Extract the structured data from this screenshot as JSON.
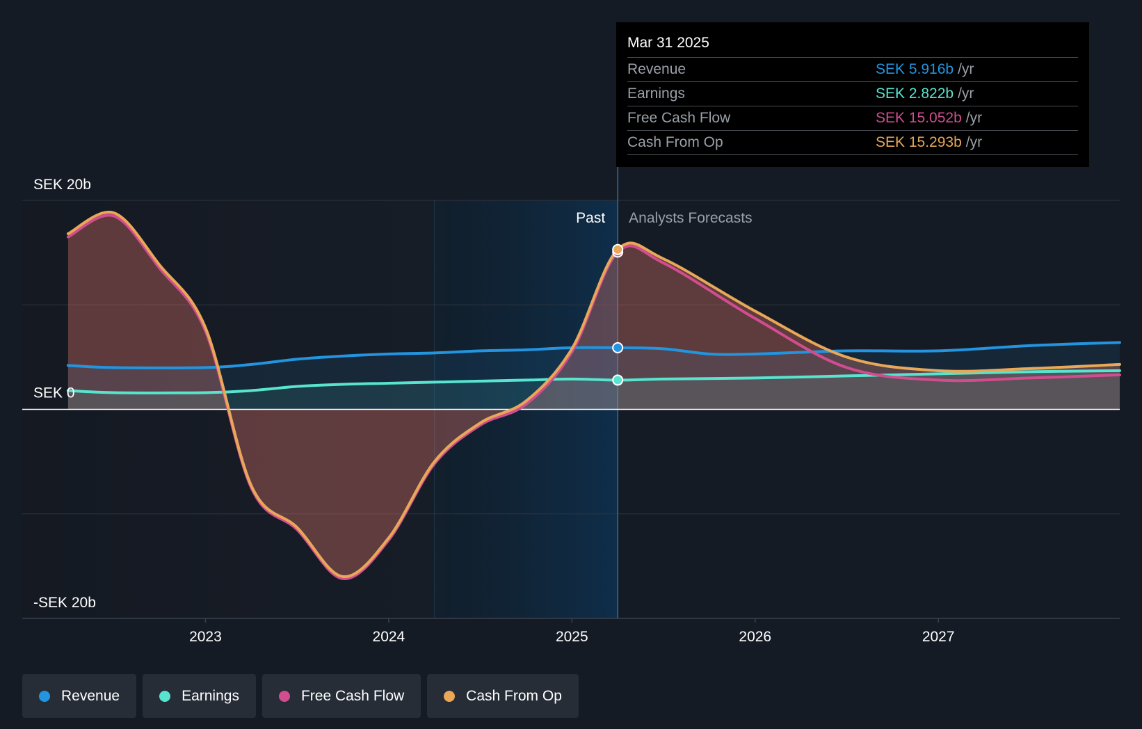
{
  "chart_data": {
    "type": "line",
    "currency": "SEK",
    "y_axis": {
      "labels": [
        "SEK 20b",
        "SEK 0",
        "-SEK 20b"
      ],
      "ticks": [
        20,
        0,
        -20
      ],
      "ylim": [
        -20,
        20
      ],
      "unit": "SEK billions"
    },
    "x_axis": {
      "tick_labels": [
        "2023",
        "2024",
        "2025",
        "2026",
        "2027"
      ],
      "ticks": [
        2023,
        2024,
        2025,
        2026,
        2027
      ],
      "xlim": [
        2022.0,
        2027.99
      ]
    },
    "past_label": "Past",
    "forecast_label": "Analysts Forecasts",
    "past_forecast_boundary": 2025.25,
    "highlight_start": 2024.25,
    "grid": true,
    "legend_position": "bottom-left",
    "series": [
      {
        "name": "Revenue",
        "color": "#2394df",
        "points": [
          [
            2022.25,
            4.2
          ],
          [
            2022.5,
            4.0
          ],
          [
            2023.0,
            4.0
          ],
          [
            2023.25,
            4.3
          ],
          [
            2023.5,
            4.8
          ],
          [
            2023.75,
            5.1
          ],
          [
            2024.0,
            5.3
          ],
          [
            2024.25,
            5.4
          ],
          [
            2024.5,
            5.6
          ],
          [
            2024.75,
            5.7
          ],
          [
            2025.0,
            5.9
          ],
          [
            2025.25,
            5.9
          ],
          [
            2025.5,
            5.8
          ],
          [
            2025.75,
            5.3
          ],
          [
            2026.0,
            5.3
          ],
          [
            2026.5,
            5.6
          ],
          [
            2027.0,
            5.6
          ],
          [
            2027.5,
            6.1
          ],
          [
            2027.99,
            6.4
          ]
        ]
      },
      {
        "name": "Earnings",
        "color": "#58e4cf",
        "points": [
          [
            2022.25,
            1.8
          ],
          [
            2022.5,
            1.6
          ],
          [
            2023.0,
            1.6
          ],
          [
            2023.25,
            1.8
          ],
          [
            2023.5,
            2.2
          ],
          [
            2023.75,
            2.4
          ],
          [
            2024.0,
            2.5
          ],
          [
            2024.25,
            2.6
          ],
          [
            2024.5,
            2.7
          ],
          [
            2024.75,
            2.8
          ],
          [
            2025.0,
            2.9
          ],
          [
            2025.25,
            2.8
          ],
          [
            2025.5,
            2.9
          ],
          [
            2026.0,
            3.0
          ],
          [
            2026.5,
            3.2
          ],
          [
            2027.0,
            3.4
          ],
          [
            2027.5,
            3.6
          ],
          [
            2027.99,
            3.7
          ]
        ]
      },
      {
        "name": "Free Cash Flow",
        "color": "#d14d8f",
        "points": [
          [
            2022.25,
            16.5
          ],
          [
            2022.5,
            18.5
          ],
          [
            2022.75,
            13.5
          ],
          [
            2023.0,
            7.5
          ],
          [
            2023.25,
            -7.5
          ],
          [
            2023.5,
            -11.5
          ],
          [
            2023.75,
            -16.2
          ],
          [
            2024.0,
            -12.5
          ],
          [
            2024.25,
            -5.2
          ],
          [
            2024.5,
            -1.5
          ],
          [
            2024.75,
            0.5
          ],
          [
            2025.0,
            5.5
          ],
          [
            2025.25,
            15.052
          ],
          [
            2025.5,
            14.0
          ],
          [
            2026.0,
            8.7
          ],
          [
            2026.5,
            4.0
          ],
          [
            2027.0,
            2.8
          ],
          [
            2027.5,
            3.0
          ],
          [
            2027.99,
            3.3
          ]
        ]
      },
      {
        "name": "Cash From Op",
        "color": "#e8a857",
        "points": [
          [
            2022.25,
            16.8
          ],
          [
            2022.5,
            18.8
          ],
          [
            2022.75,
            13.8
          ],
          [
            2023.0,
            7.8
          ],
          [
            2023.25,
            -7.3
          ],
          [
            2023.5,
            -11.3
          ],
          [
            2023.75,
            -16.0
          ],
          [
            2024.0,
            -12.3
          ],
          [
            2024.25,
            -5.0
          ],
          [
            2024.5,
            -1.3
          ],
          [
            2024.75,
            0.8
          ],
          [
            2025.0,
            5.8
          ],
          [
            2025.25,
            15.293
          ],
          [
            2025.5,
            14.4
          ],
          [
            2026.0,
            9.4
          ],
          [
            2026.5,
            5.0
          ],
          [
            2027.0,
            3.7
          ],
          [
            2027.5,
            3.9
          ],
          [
            2027.99,
            4.3
          ]
        ]
      }
    ],
    "tooltip": {
      "date": "Mar 31 2025",
      "rows": [
        {
          "label": "Revenue",
          "value": "SEK 5.916b",
          "unit": "/yr",
          "color": "#2394df"
        },
        {
          "label": "Earnings",
          "value": "SEK 2.822b",
          "unit": "/yr",
          "color": "#58e4cf"
        },
        {
          "label": "Free Cash Flow",
          "value": "SEK 15.052b",
          "unit": "/yr",
          "color": "#d14d8f"
        },
        {
          "label": "Cash From Op",
          "value": "SEK 15.293b",
          "unit": "/yr",
          "color": "#e8a857"
        }
      ]
    }
  },
  "legend": [
    {
      "label": "Revenue",
      "color": "#2394df"
    },
    {
      "label": "Earnings",
      "color": "#58e4cf"
    },
    {
      "label": "Free Cash Flow",
      "color": "#d14d8f"
    },
    {
      "label": "Cash From Op",
      "color": "#e8a857"
    }
  ]
}
